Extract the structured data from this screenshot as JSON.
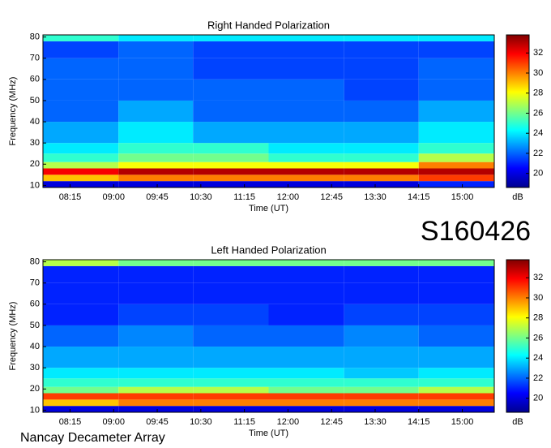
{
  "chart_data": [
    {
      "type": "heatmap",
      "title": "Right Handed Polarization",
      "x_label": "Time (UT)",
      "y_label": "Frequency (MHz)",
      "colorbar_label": "dB",
      "colormap": "jet",
      "x_edges": [
        467,
        545,
        622,
        700,
        778,
        855,
        933
      ],
      "y_edges": [
        9,
        12,
        15,
        18,
        21,
        25,
        30,
        40,
        50,
        60,
        70,
        78,
        81
      ],
      "values": [
        [
          20,
          20,
          20,
          20,
          20,
          21
        ],
        [
          29,
          30,
          30,
          30,
          30,
          31
        ],
        [
          32,
          33,
          33,
          33,
          33,
          33
        ],
        [
          27,
          28,
          28,
          28,
          28,
          30
        ],
        [
          25,
          26,
          26,
          25,
          25,
          27
        ],
        [
          24,
          25,
          25,
          24,
          24,
          25
        ],
        [
          23,
          24,
          23,
          23,
          23,
          24
        ],
        [
          22,
          23,
          22,
          22,
          22,
          23
        ],
        [
          22,
          22,
          22,
          22,
          21.5,
          22
        ],
        [
          22,
          22,
          21.5,
          21.5,
          21.5,
          22
        ],
        [
          21.5,
          22,
          21.5,
          21.5,
          21.5,
          21.5
        ],
        [
          25,
          24,
          24,
          24,
          24,
          24
        ]
      ],
      "xlim": [
        467,
        933
      ],
      "ylim": [
        9,
        81
      ],
      "xticks": [
        {
          "value": 495,
          "label": "08:15"
        },
        {
          "value": 540,
          "label": "09:00"
        },
        {
          "value": 585,
          "label": "09:45"
        },
        {
          "value": 630,
          "label": "10:30"
        },
        {
          "value": 675,
          "label": "11:15"
        },
        {
          "value": 720,
          "label": "12:00"
        },
        {
          "value": 765,
          "label": "12:45"
        },
        {
          "value": 810,
          "label": "13:30"
        },
        {
          "value": 855,
          "label": "14:15"
        },
        {
          "value": 900,
          "label": "15:00"
        }
      ],
      "yticks": [
        10,
        20,
        30,
        40,
        50,
        60,
        70,
        80
      ],
      "clim": [
        18.6,
        33.8
      ],
      "cticks": [
        20,
        22,
        24,
        26,
        28,
        30,
        32
      ]
    },
    {
      "type": "heatmap",
      "title": "Left Handed Polarization",
      "x_label": "Time (UT)",
      "y_label": "Frequency (MHz)",
      "colorbar_label": "dB",
      "colormap": "jet",
      "x_edges": [
        467,
        545,
        622,
        700,
        778,
        855,
        933
      ],
      "y_edges": [
        9,
        12,
        15,
        18,
        21,
        25,
        30,
        40,
        50,
        60,
        70,
        78,
        81
      ],
      "values": [
        [
          20,
          20,
          20,
          20,
          20,
          20
        ],
        [
          29,
          30,
          30,
          30,
          30,
          30
        ],
        [
          31,
          31,
          31,
          31,
          31,
          31
        ],
        [
          26,
          27,
          27,
          26,
          26,
          27
        ],
        [
          25,
          25,
          25,
          25,
          25,
          25
        ],
        [
          24,
          24,
          24,
          24,
          23.5,
          24
        ],
        [
          23,
          23,
          23,
          23,
          23,
          23
        ],
        [
          22,
          22.5,
          22,
          22,
          22.5,
          22
        ],
        [
          21,
          21.5,
          21.5,
          21,
          21.5,
          21.5
        ],
        [
          21,
          21,
          21,
          21,
          21,
          21
        ],
        [
          21,
          21,
          21,
          21,
          21,
          21
        ],
        [
          27,
          26,
          26,
          26,
          26,
          26
        ]
      ],
      "xlim": [
        467,
        933
      ],
      "ylim": [
        9,
        81
      ],
      "xticks": [
        {
          "value": 495,
          "label": "08:15"
        },
        {
          "value": 540,
          "label": "09:00"
        },
        {
          "value": 585,
          "label": "09:45"
        },
        {
          "value": 630,
          "label": "10:30"
        },
        {
          "value": 675,
          "label": "11:15"
        },
        {
          "value": 720,
          "label": "12:00"
        },
        {
          "value": 765,
          "label": "12:45"
        },
        {
          "value": 810,
          "label": "13:30"
        },
        {
          "value": 855,
          "label": "14:15"
        },
        {
          "value": 900,
          "label": "15:00"
        }
      ],
      "yticks": [
        10,
        20,
        30,
        40,
        50,
        60,
        70,
        80
      ],
      "clim": [
        18.6,
        33.8
      ],
      "cticks": [
        20,
        22,
        24,
        26,
        28,
        30,
        32
      ]
    }
  ],
  "annotations": {
    "id": "S160426",
    "source": "Nancay Decameter Array"
  }
}
